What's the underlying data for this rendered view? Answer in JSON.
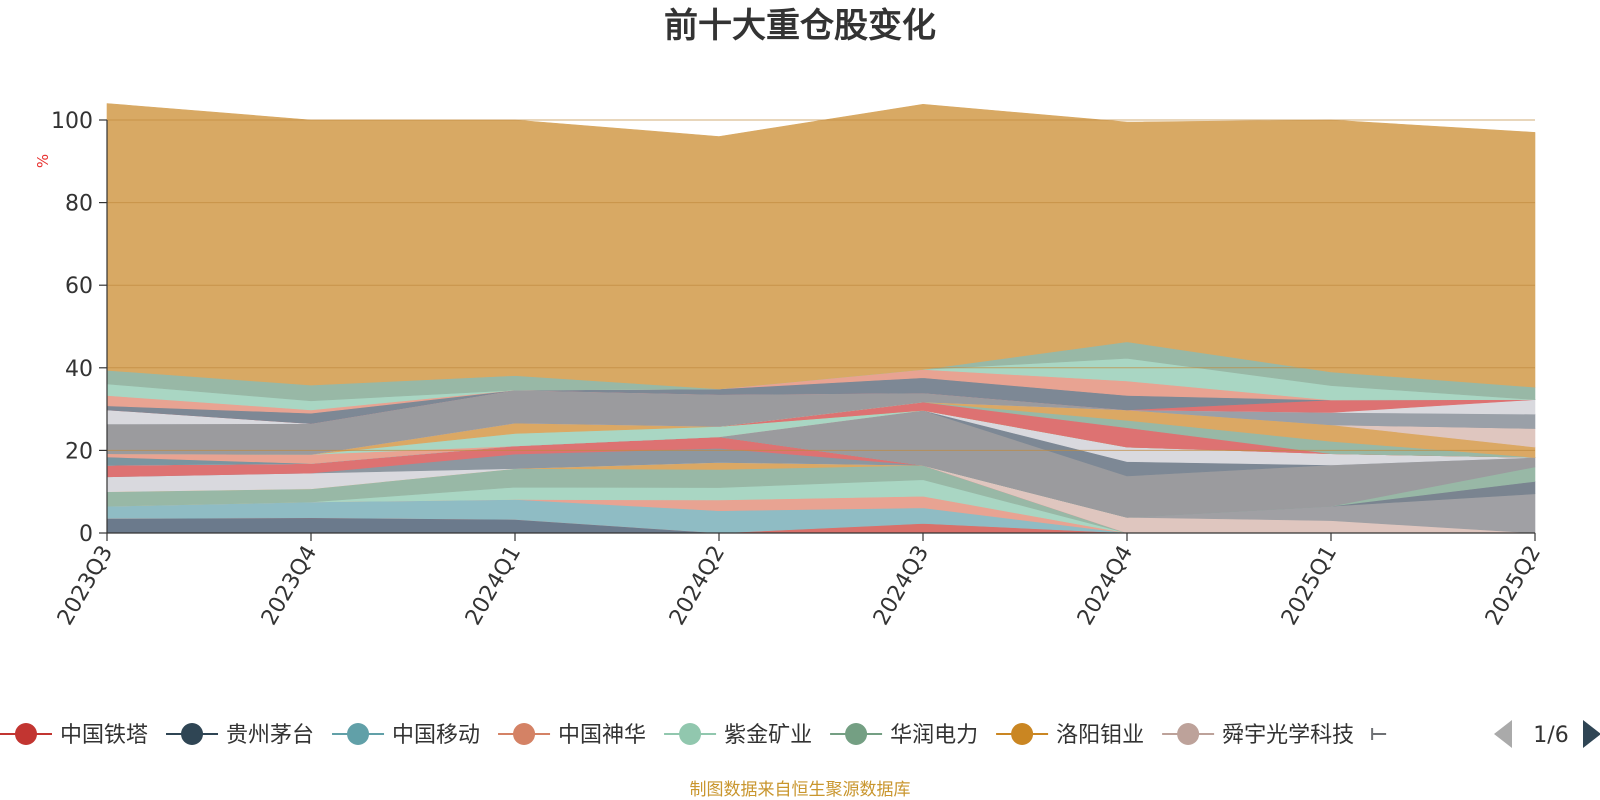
{
  "chart_data": {
    "type": "area",
    "stacked": true,
    "title": "前十大重仓股变化",
    "ylabel": "%",
    "ylim": [
      0,
      100
    ],
    "yticks": [
      "0",
      "20",
      "40",
      "60",
      "80",
      "100"
    ],
    "grid": true,
    "categories": [
      "2023Q3",
      "2023Q4",
      "2024Q1",
      "2024Q2",
      "2024Q3",
      "2024Q4",
      "2025Q1",
      "2025Q2"
    ],
    "series": [
      {
        "name": "",
        "color": "#6b7a8c",
        "values": [
          3.5,
          3.7,
          3.3,
          0,
          0,
          0,
          0,
          0
        ]
      },
      {
        "name": "中国铁塔",
        "color": "#d9706a",
        "values": [
          0,
          0,
          0,
          0,
          2.3,
          0,
          0,
          0
        ]
      },
      {
        "name": "中国移动",
        "color": "#8fbcc4",
        "values": [
          3.0,
          3.8,
          4.8,
          5.4,
          3.8,
          0,
          0,
          0
        ]
      },
      {
        "name": "中国神华",
        "color": "#e8a392",
        "values": [
          0,
          0,
          0,
          2.6,
          2.8,
          0,
          0,
          0
        ]
      },
      {
        "name": "紫金矿业",
        "color": "#a9d6c3",
        "values": [
          0,
          0,
          3.0,
          3.0,
          4.0,
          0,
          0,
          0
        ]
      },
      {
        "name": "华润电力",
        "color": "#98b8a6",
        "values": [
          3.5,
          3.2,
          4.5,
          4.4,
          3.5,
          0,
          0,
          0
        ]
      },
      {
        "name": "洛阳钼业",
        "color": "#dba864",
        "values": [
          0,
          0,
          0,
          1.7,
          0,
          0,
          0,
          0
        ]
      },
      {
        "name": "",
        "color": "#d9d9de",
        "values": [
          3.6,
          3.8,
          0,
          0,
          0,
          0,
          0,
          0
        ]
      },
      {
        "name": "",
        "color": "#8d97a0",
        "values": [
          0,
          0,
          3.5,
          3.4,
          0,
          0,
          0,
          0
        ]
      },
      {
        "name": "",
        "color": "#dd7272",
        "values": [
          2.8,
          2.3,
          2.0,
          2.8,
          0,
          0,
          0,
          0
        ]
      },
      {
        "name": "舜宇光学科技",
        "color": "#dfc6bf",
        "values": [
          0,
          0,
          0,
          0,
          0,
          3.8,
          3.0,
          0
        ]
      },
      {
        "name": "",
        "color": "#a0a0a4",
        "values": [
          0,
          0,
          0,
          0,
          0,
          0,
          3.5,
          9.5
        ]
      },
      {
        "name": "",
        "color": "#7a8490",
        "values": [
          0,
          0,
          0,
          0,
          0,
          0,
          0,
          3.0
        ]
      },
      {
        "name": "",
        "color": "#98b8a6",
        "values": [
          0,
          0,
          0,
          0,
          0,
          0,
          0,
          3.5
        ]
      },
      {
        "name": "",
        "color": "#9b9b9e",
        "values": [
          0,
          0,
          0,
          0,
          13.3,
          10.0,
          10.0,
          2.3
        ]
      },
      {
        "name": "",
        "color": "#7d8895",
        "values": [
          0,
          0,
          0,
          0,
          0,
          3.5,
          0,
          0
        ]
      },
      {
        "name": "",
        "color": "#d9d9de",
        "values": [
          0,
          0,
          0,
          0,
          0,
          3.5,
          2.7,
          0
        ]
      },
      {
        "name": "",
        "color": "#7a95a0",
        "values": [
          2.0,
          0,
          0,
          0,
          0,
          0,
          0,
          0
        ]
      },
      {
        "name": "",
        "color": "#e8a392",
        "values": [
          0.8,
          2.2,
          0,
          0,
          0,
          0,
          0,
          0
        ]
      },
      {
        "name": "",
        "color": "#a9d6c3",
        "values": [
          0,
          0,
          3.0,
          2.5,
          0,
          0,
          0,
          0
        ]
      },
      {
        "name": "",
        "color": "#dba864",
        "values": [
          0,
          0,
          2.5,
          0,
          0,
          0,
          0,
          0
        ]
      },
      {
        "name": "",
        "color": "#dd7272",
        "values": [
          0,
          0,
          0,
          0,
          2.0,
          4.7,
          0,
          0
        ]
      },
      {
        "name": "",
        "color": "#98b8a6",
        "values": [
          0,
          0,
          0,
          0,
          0,
          1.8,
          3.0,
          0
        ]
      },
      {
        "name": "",
        "color": "#dba864",
        "values": [
          0,
          0,
          0,
          0,
          0,
          2.5,
          4.0,
          2.5
        ]
      },
      {
        "name": "",
        "color": "#dfc6bf",
        "values": [
          0,
          0,
          0,
          0,
          0,
          0,
          0,
          4.5
        ]
      },
      {
        "name": "",
        "color": "#9b9b9e",
        "values": [
          7.2,
          7.5,
          8.0,
          7.7,
          2.2,
          0,
          0,
          0
        ]
      },
      {
        "name": "",
        "color": "#9aa0a8",
        "values": [
          0,
          0,
          0,
          0,
          0,
          0,
          3.0,
          3.5
        ]
      },
      {
        "name": "",
        "color": "#d9d9de",
        "values": [
          3.4,
          0,
          0,
          0,
          0,
          0,
          0,
          3.5
        ]
      },
      {
        "name": "",
        "color": "#dd7272",
        "values": [
          0,
          0,
          0,
          0,
          0,
          0,
          3.0,
          0
        ]
      },
      {
        "name": "",
        "color": "#7d8895",
        "values": [
          1.0,
          2.5,
          0,
          1.4,
          3.7,
          3.5,
          0,
          0
        ]
      },
      {
        "name": "",
        "color": "#e8a392",
        "values": [
          2.5,
          0.8,
          0,
          0,
          2.0,
          3.5,
          0,
          0
        ]
      },
      {
        "name": "",
        "color": "#a9d6c3",
        "values": [
          2.8,
          2.2,
          0,
          0,
          0,
          5.5,
          3.5,
          0
        ]
      },
      {
        "name": "",
        "color": "#98b8a6",
        "values": [
          3.3,
          3.8,
          3.5,
          0,
          0,
          4.0,
          3.3,
          3.0
        ]
      },
      {
        "name": "",
        "color": "#d8a964",
        "values": [
          64.6,
          64.2,
          61.9,
          61.1,
          64.2,
          53.2,
          61.0,
          61.7
        ]
      }
    ]
  },
  "legend": {
    "items": [
      {
        "label": "中国铁塔",
        "color": "#c23531"
      },
      {
        "label": "贵州茅台",
        "color": "#2f4554"
      },
      {
        "label": "中国移动",
        "color": "#61a0a8"
      },
      {
        "label": "中国神华",
        "color": "#d48265"
      },
      {
        "label": "紫金矿业",
        "color": "#91c7ae"
      },
      {
        "label": "华润电力",
        "color": "#749f83"
      },
      {
        "label": "洛阳钼业",
        "color": "#ca8622"
      },
      {
        "label": "舜宇光学科技",
        "color": "#bda29a"
      }
    ],
    "next_color": "#6e7074",
    "page": "1/6"
  },
  "source_note": "制图数据来自恒生聚源数据库"
}
